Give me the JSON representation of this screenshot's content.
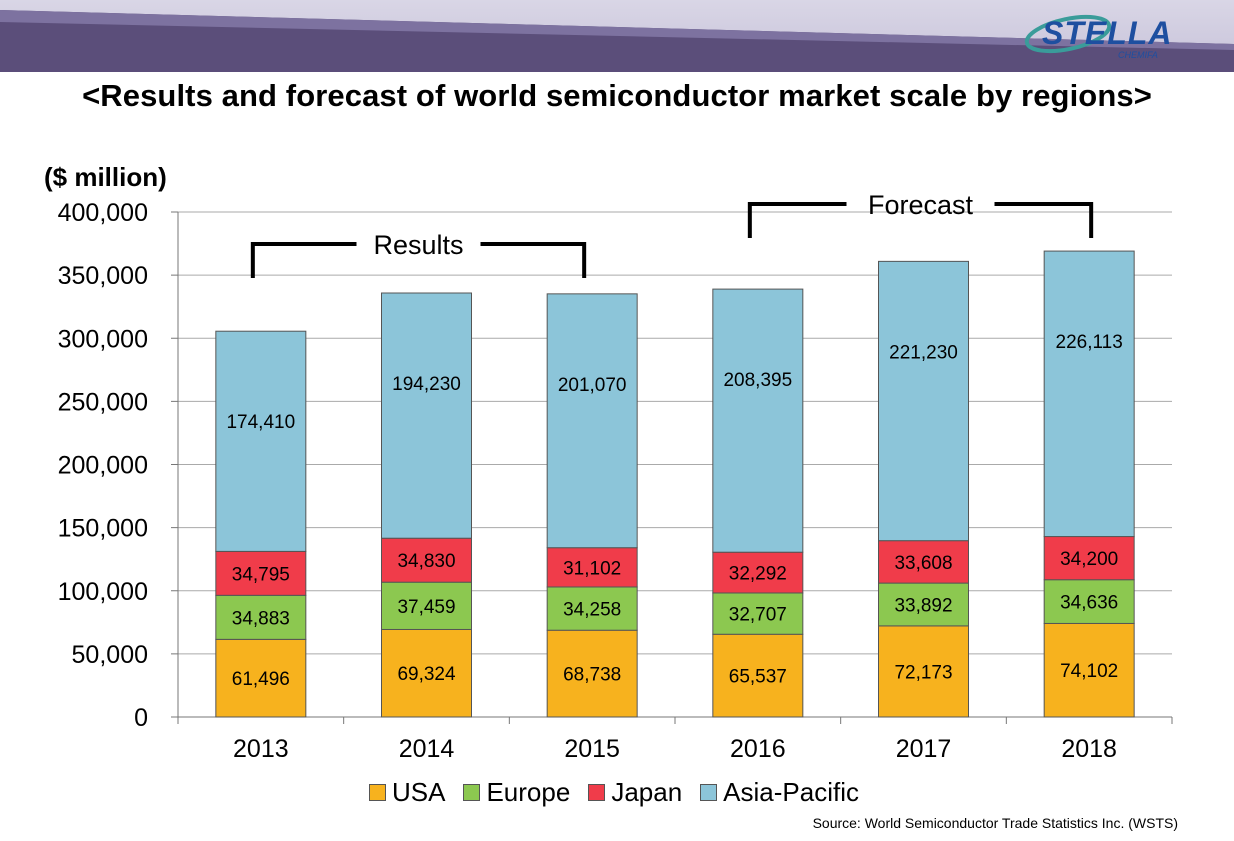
{
  "page_title": "<Results and forecast of world semiconductor market scale by regions>",
  "logo_text": "STELLA",
  "logo_subtext": "CHEMIFA",
  "source_note": "Source: World Semiconductor Trade Statistics Inc. (WSTS)",
  "colors": {
    "usa": "#F7B21E",
    "europe": "#8CC850",
    "japan": "#F03C4A",
    "asia_pacific": "#8CC5D9",
    "grid": "#aaaaaa",
    "header": "#5b4e7a",
    "logo": "#1e4fa0"
  },
  "chart_data": {
    "type": "bar",
    "stacked": true,
    "ylabel": "($ million)",
    "ylim": [
      0,
      400000
    ],
    "yticks": [
      "0",
      "50,000",
      "100,000",
      "150,000",
      "200,000",
      "250,000",
      "300,000",
      "350,000",
      "400,000"
    ],
    "categories": [
      "2013",
      "2014",
      "2015",
      "2016",
      "2017",
      "2018"
    ],
    "series": [
      {
        "name": "USA",
        "values": [
          61496,
          69324,
          68738,
          65537,
          72173,
          74102
        ],
        "labels": [
          "61,496",
          "69,324",
          "68,738",
          "65,537",
          "72,173",
          "74,102"
        ]
      },
      {
        "name": "Europe",
        "values": [
          34883,
          37459,
          34258,
          32707,
          33892,
          34636
        ],
        "labels": [
          "34,883",
          "37,459",
          "34,258",
          "32,707",
          "33,892",
          "34,636"
        ]
      },
      {
        "name": "Japan",
        "values": [
          34795,
          34830,
          31102,
          32292,
          33608,
          34200
        ],
        "labels": [
          "34,795",
          "34,830",
          "31,102",
          "32,292",
          "33,608",
          "34,200"
        ]
      },
      {
        "name": "Asia-Pacific",
        "values": [
          174410,
          194230,
          201070,
          208395,
          221230,
          226113
        ],
        "labels": [
          "174,410",
          "194,230",
          "201,070",
          "208,395",
          "221,230",
          "226,113"
        ]
      }
    ],
    "annotations": [
      {
        "text": "Results",
        "from": "2013",
        "to": "2015"
      },
      {
        "text": "Forecast",
        "from": "2016",
        "to": "2018"
      }
    ],
    "grid": true,
    "legend": "bottom"
  }
}
